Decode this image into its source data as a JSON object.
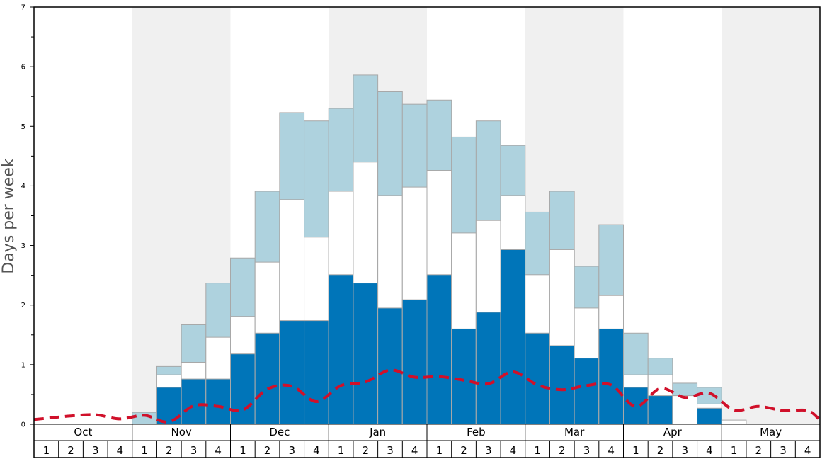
{
  "chart_data": {
    "type": "bar",
    "ylabel": "Days per week",
    "ylim": [
      0,
      7
    ],
    "y_ticks": [
      "0",
      "1",
      "2",
      "3",
      "4",
      "5",
      "6",
      "7"
    ],
    "months": [
      "Oct",
      "Nov",
      "Dec",
      "Jan",
      "Feb",
      "Mar",
      "Apr",
      "May"
    ],
    "week_labels": [
      "1",
      "2",
      "3",
      "4"
    ],
    "colors": {
      "dark": "#0075b9",
      "middle": "#ffffff",
      "light": "#aed2de",
      "line": "#d0102a",
      "band": "#f0f0f0",
      "bar_border": "#a8a8a8"
    },
    "categories": [
      "Oct 1",
      "Oct 2",
      "Oct 3",
      "Oct 4",
      "Nov 1",
      "Nov 2",
      "Nov 3",
      "Nov 4",
      "Dec 1",
      "Dec 2",
      "Dec 3",
      "Dec 4",
      "Jan 1",
      "Jan 2",
      "Jan 3",
      "Jan 4",
      "Feb 1",
      "Feb 2",
      "Feb 3",
      "Feb 4",
      "Mar 1",
      "Mar 2",
      "Mar 3",
      "Mar 4",
      "Apr 1",
      "Apr 2",
      "Apr 3",
      "Apr 4",
      "May 1",
      "May 2",
      "May 3",
      "May 4"
    ],
    "series": [
      {
        "values": [
          0,
          0,
          0,
          0,
          0,
          0.62,
          0.76,
          0.76,
          1.18,
          1.53,
          1.74,
          1.74,
          2.51,
          2.37,
          1.95,
          2.09,
          2.51,
          1.6,
          1.88,
          2.93,
          1.53,
          1.32,
          1.11,
          1.6,
          0.62,
          0.48,
          0,
          0.27,
          0,
          0,
          0,
          0
        ]
      },
      {
        "values": [
          0,
          0,
          0,
          0,
          0,
          0.83,
          1.04,
          1.46,
          1.81,
          2.72,
          3.77,
          3.14,
          3.91,
          4.4,
          3.84,
          3.98,
          4.26,
          3.21,
          3.42,
          3.84,
          2.51,
          2.93,
          1.95,
          2.16,
          0.83,
          0.83,
          0.48,
          0.34,
          0.07,
          0,
          0,
          0
        ]
      },
      {
        "values": [
          0,
          0,
          0,
          0,
          0.2,
          0.97,
          1.67,
          2.37,
          2.79,
          3.91,
          5.23,
          5.09,
          5.3,
          5.86,
          5.58,
          5.37,
          5.44,
          4.82,
          5.09,
          4.68,
          3.56,
          3.91,
          2.65,
          3.35,
          1.53,
          1.11,
          0.69,
          0.62,
          0,
          0,
          0,
          0
        ]
      },
      {
        "values": [
          0.1,
          0.14,
          0.16,
          0.09,
          0.15,
          0.04,
          0.31,
          0.3,
          0.24,
          0.59,
          0.64,
          0.38,
          0.65,
          0.71,
          0.91,
          0.79,
          0.8,
          0.74,
          0.68,
          0.88,
          0.66,
          0.58,
          0.65,
          0.66,
          0.3,
          0.6,
          0.45,
          0.52,
          0.24,
          0.3,
          0.23,
          0.23
        ]
      }
    ]
  }
}
